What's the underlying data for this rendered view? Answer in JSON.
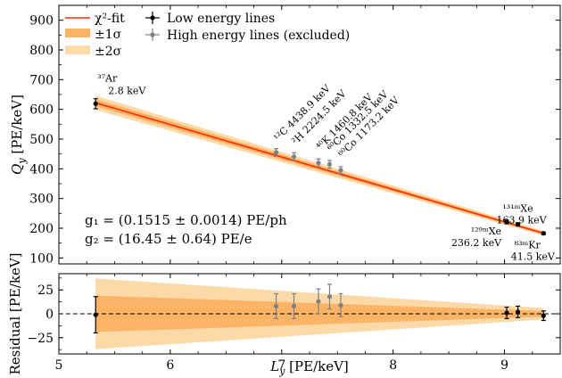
{
  "chart_data": [
    {
      "type": "scatter",
      "panel": "main",
      "xlabel": "L_y [PE/keV]",
      "ylabel": "Q_y [PE/keV]",
      "xlim": [
        5.0,
        9.5
      ],
      "ylim": [
        80,
        950
      ],
      "x_ticks": [
        "5",
        "6",
        "7",
        "8",
        "9"
      ],
      "x_tick_values": [
        5,
        6,
        7,
        8,
        9
      ],
      "y_ticks": [
        "100",
        "200",
        "300",
        "400",
        "500",
        "600",
        "700",
        "800",
        "900"
      ],
      "y_tick_values": [
        100,
        200,
        300,
        400,
        500,
        600,
        700,
        800,
        900
      ],
      "legend": {
        "fit": "χ²-fit",
        "band1": "±1σ",
        "band2": "±2σ",
        "low": "Low energy lines",
        "high": "High energy lines (excluded)"
      },
      "colors": {
        "fit_line": "#ff2a00",
        "band1": "#fdb366",
        "band2": "#fdd9a8",
        "low_points": "#000000",
        "high_points": "#808080"
      },
      "fit": {
        "g1_text": "g₁ = (0.1515 ± 0.0014) PE/ph",
        "g2_text": "g₂ = (16.45 ± 0.64) PE/e",
        "line": [
          [
            5.33,
            622
          ],
          [
            9.35,
            183
          ]
        ],
        "band1_halfwidth_at": [
          [
            5.33,
            12
          ],
          [
            9.35,
            4
          ]
        ],
        "band2_halfwidth_at": [
          [
            5.33,
            24
          ],
          [
            9.35,
            8
          ]
        ]
      },
      "low_energy_lines": [
        {
          "isotope": "³⁷Ar",
          "energy": "2.8 keV",
          "x": 5.33,
          "y": 619,
          "yerr": 17
        },
        {
          "isotope": "¹²⁹ᵐXe",
          "energy": "236.2 keV",
          "x": 9.02,
          "y": 221,
          "yerr": 6
        },
        {
          "isotope": "¹³¹ᵐXe",
          "energy": "163.9 keV",
          "x": 9.12,
          "y": 213,
          "yerr": 5
        },
        {
          "isotope": "⁸³ᵐKr",
          "energy": "41.5 keV",
          "x": 9.35,
          "y": 183,
          "yerr": 4
        }
      ],
      "high_energy_lines": [
        {
          "isotope": "¹²C",
          "energy": "4438.9 keV",
          "x": 6.95,
          "y": 455,
          "yerr": 13
        },
        {
          "isotope": "²H",
          "energy": "2224.5 keV",
          "x": 7.11,
          "y": 441,
          "yerr": 13
        },
        {
          "isotope": "⁴⁰K",
          "energy": "1460.8 keV",
          "x": 7.33,
          "y": 420,
          "yerr": 13
        },
        {
          "isotope": "⁶⁰Co",
          "energy": "1332.5 keV",
          "x": 7.43,
          "y": 415,
          "yerr": 13
        },
        {
          "isotope": "⁶⁰Co",
          "energy": "1173.2 keV",
          "x": 7.53,
          "y": 395,
          "yerr": 12
        }
      ]
    },
    {
      "type": "scatter",
      "panel": "residual",
      "xlabel": "L_y [PE/keV]",
      "ylabel": "Residual [PE/keV]",
      "xlim": [
        5.0,
        9.5
      ],
      "ylim": [
        -42,
        42
      ],
      "y_ticks": [
        "−25",
        "0",
        "25"
      ],
      "y_tick_values": [
        -25,
        0,
        25
      ],
      "band1_halfwidth_at": [
        [
          5.33,
          19
        ],
        [
          9.35,
          3
        ]
      ],
      "band2_halfwidth_at": [
        [
          5.33,
          37
        ],
        [
          9.35,
          6
        ]
      ],
      "points": [
        {
          "x": 5.33,
          "y": -1,
          "yerr": 19,
          "group": "low"
        },
        {
          "x": 6.95,
          "y": 8,
          "yerr": 13,
          "group": "high"
        },
        {
          "x": 7.11,
          "y": 8,
          "yerr": 13,
          "group": "high"
        },
        {
          "x": 7.33,
          "y": 13,
          "yerr": 13,
          "group": "high"
        },
        {
          "x": 7.43,
          "y": 18,
          "yerr": 13,
          "group": "high"
        },
        {
          "x": 7.53,
          "y": 9,
          "yerr": 12,
          "group": "high"
        },
        {
          "x": 9.02,
          "y": 1,
          "yerr": 6,
          "group": "low"
        },
        {
          "x": 9.12,
          "y": 2,
          "yerr": 6,
          "group": "low"
        },
        {
          "x": 9.35,
          "y": -2,
          "yerr": 5,
          "group": "low"
        }
      ]
    }
  ]
}
